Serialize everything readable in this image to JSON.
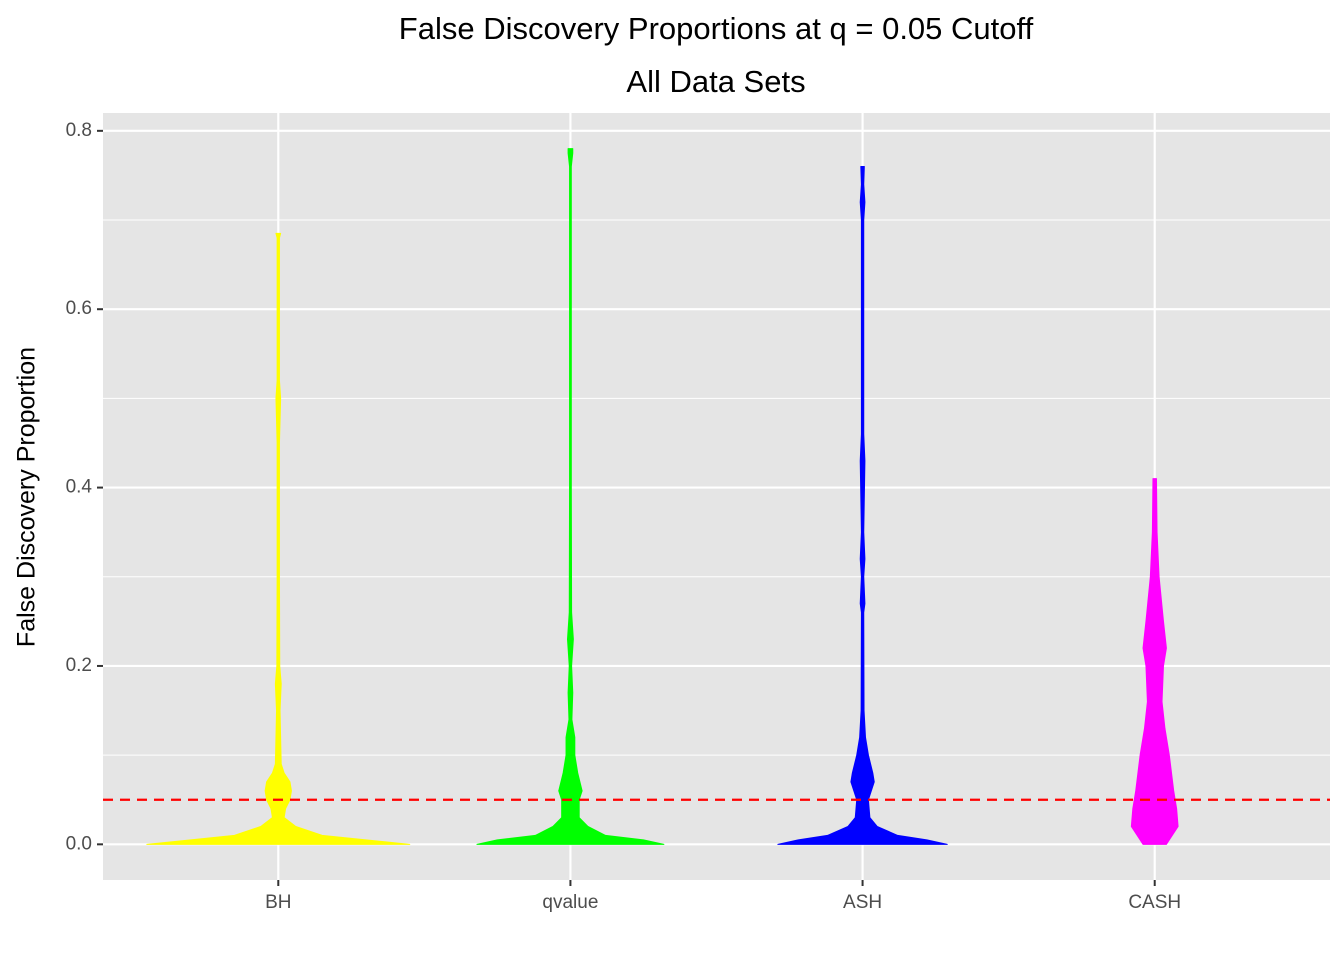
{
  "chart_data": {
    "type": "violin",
    "title": "False Discovery Proportions at q = 0.05 Cutoff",
    "subtitle": "All Data Sets",
    "y_label": "False Discovery Proportion",
    "categories": [
      "BH",
      "qvalue",
      "ASH",
      "CASH"
    ],
    "ylim": [
      -0.04,
      0.82
    ],
    "yticks": [
      {
        "value": 0,
        "label": "0.0"
      },
      0.2,
      0.4,
      0.6,
      0.8
    ],
    "grid": true,
    "reference_line": {
      "value": 0.05,
      "color": "#ff0000"
    },
    "series": [
      {
        "color": "#ffff00",
        "values": [
          0,
          0.005,
          0.01,
          0.02,
          0.03,
          0.04,
          0.05,
          0.06,
          0.07,
          0.08,
          0.09,
          0.12,
          0.15,
          0.18,
          0.2,
          0.3,
          0.45,
          0.5,
          0.52,
          0.68,
          0.685
        ],
        "widths": [
          0.45,
          0.3,
          0.15,
          0.06,
          0.02,
          0.025,
          0.04,
          0.045,
          0.04,
          0.02,
          0.01,
          0.008,
          0.006,
          0.01,
          0.005,
          0.004,
          0.004,
          0.008,
          0.004,
          0.004,
          0.008
        ]
      },
      {
        "color": "#00ff00",
        "values": [
          0,
          0.005,
          0.01,
          0.02,
          0.03,
          0.05,
          0.06,
          0.08,
          0.1,
          0.12,
          0.14,
          0.17,
          0.2,
          0.23,
          0.26,
          0.4,
          0.76,
          0.775,
          0.78
        ],
        "widths": [
          0.32,
          0.25,
          0.12,
          0.06,
          0.03,
          0.03,
          0.04,
          0.025,
          0.015,
          0.015,
          0.005,
          0.008,
          0.004,
          0.01,
          0.004,
          0.003,
          0.003,
          0.008,
          0.008
        ]
      },
      {
        "color": "#0000ff",
        "values": [
          0,
          0.005,
          0.01,
          0.02,
          0.03,
          0.05,
          0.07,
          0.08,
          0.1,
          0.12,
          0.15,
          0.26,
          0.27,
          0.3,
          0.32,
          0.35,
          0.43,
          0.46,
          0.7,
          0.72,
          0.74,
          0.76
        ],
        "widths": [
          0.29,
          0.22,
          0.12,
          0.05,
          0.025,
          0.02,
          0.04,
          0.035,
          0.02,
          0.01,
          0.005,
          0.004,
          0.008,
          0.004,
          0.008,
          0.004,
          0.008,
          0.004,
          0.004,
          0.008,
          0.004,
          0.006
        ]
      },
      {
        "color": "#ff00ff",
        "values": [
          0,
          0.02,
          0.04,
          0.06,
          0.1,
          0.13,
          0.16,
          0.2,
          0.22,
          0.25,
          0.3,
          0.35,
          0.41
        ],
        "widths": [
          0.04,
          0.08,
          0.075,
          0.065,
          0.05,
          0.035,
          0.025,
          0.03,
          0.04,
          0.03,
          0.015,
          0.008,
          0.006
        ]
      }
    ]
  }
}
